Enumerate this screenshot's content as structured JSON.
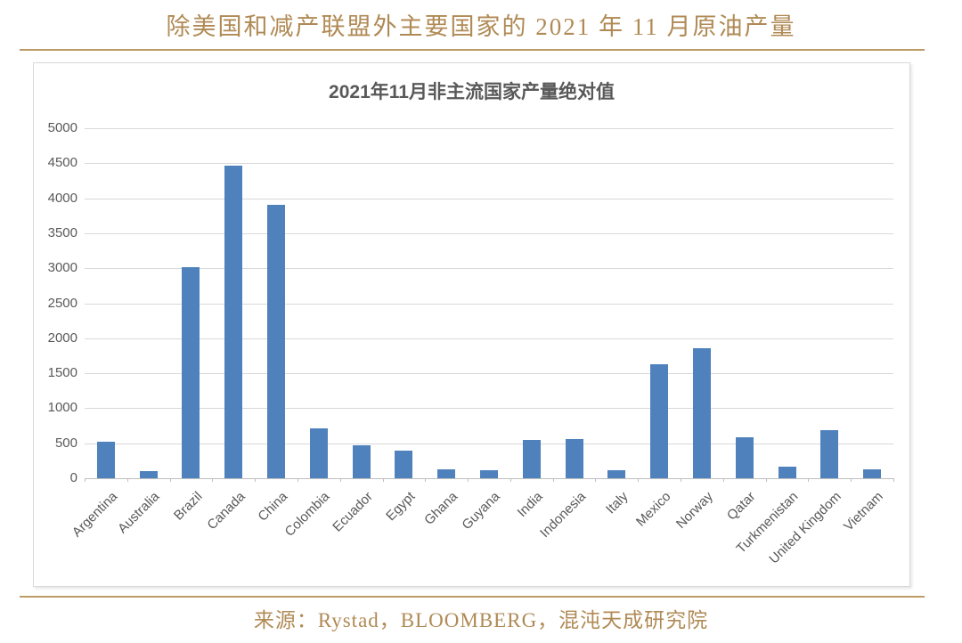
{
  "page": {
    "title": "除美国和减产联盟外主要国家的 2021 年 11 月原油产量",
    "source": "来源：Rystad，BLOOMBERG，混沌天成研究院"
  },
  "colors": {
    "accent_text": "#B08A55",
    "accent_line": "#BC9C66",
    "bar": "#4F81BD",
    "gridline": "#D9D9D9",
    "axis": "#BFBFBF",
    "chart_text": "#595959",
    "card_border": "#D9D9D9",
    "background": "#FFFFFF"
  },
  "chart_data": {
    "type": "bar",
    "title": "2021年11月非主流国家产量绝对值",
    "categories": [
      "Argentina",
      "Australia",
      "Brazil",
      "Canada",
      "China",
      "Colombia",
      "Ecuador",
      "Egypt",
      "Ghana",
      "Guyana",
      "India",
      "Indonesia",
      "Italy",
      "Mexico",
      "Norway",
      "Qatar",
      "Turkmenistan",
      "United Kingdom",
      "Vietnam"
    ],
    "values": [
      520,
      100,
      3020,
      4460,
      3910,
      710,
      470,
      400,
      130,
      120,
      550,
      560,
      110,
      1630,
      1860,
      590,
      160,
      690,
      130
    ],
    "xlabel": "",
    "ylabel": "",
    "ylim": [
      0,
      5000
    ],
    "ytick_step": 500,
    "grid": true,
    "legend": "none",
    "bar_color": "#4F81BD"
  }
}
